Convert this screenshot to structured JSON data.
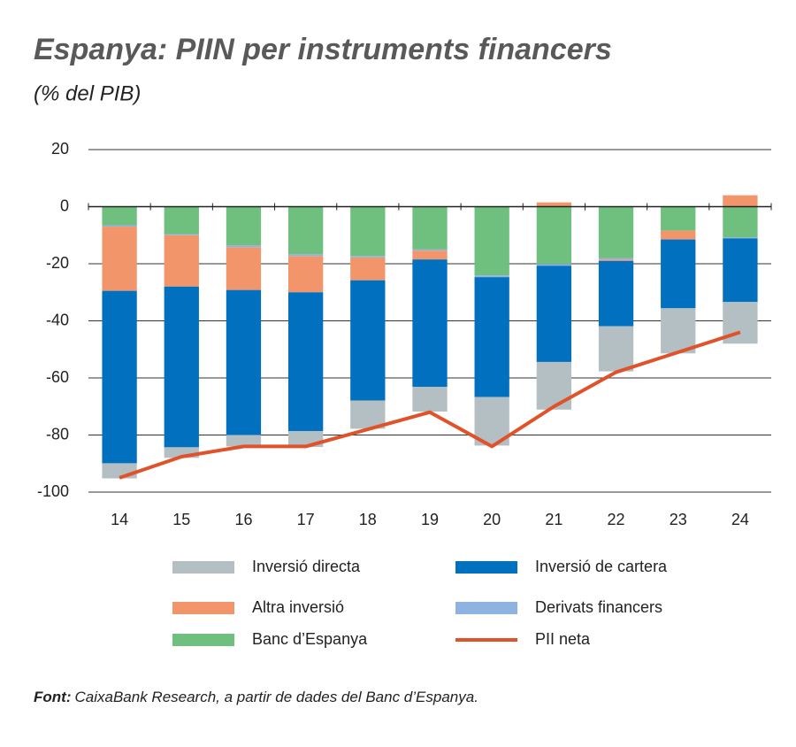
{
  "chart_data": {
    "type": "bar",
    "stacked": true,
    "title": "Espanya: PIIN per instruments financers",
    "subtitle": "(% del PIB)",
    "categories": [
      "14",
      "15",
      "16",
      "17",
      "18",
      "19",
      "20",
      "21",
      "22",
      "23",
      "24"
    ],
    "series": [
      {
        "name": "Inversió directa",
        "color": "#b3bfc2",
        "values": [
          -5.3,
          -3.7,
          -4,
          -5.6,
          -9.9,
          -8.7,
          -17,
          -16.7,
          -15.8,
          -15.8,
          -14.6
        ]
      },
      {
        "name": "Inversió de cartera",
        "color": "#0070bf",
        "values": [
          -60.4,
          -56.3,
          -50.8,
          -48.6,
          -42.1,
          -44.6,
          -42,
          -33.7,
          -22.9,
          -24.1,
          -22.3
        ]
      },
      {
        "name": "Altra inversió",
        "color": "#f2956b",
        "values": [
          -22.5,
          -18,
          -15,
          -12.7,
          -8,
          -3.1,
          0,
          1.5,
          -0.5,
          -3.1,
          4
        ]
      },
      {
        "name": "Derivats financers",
        "color": "#8fb3e0",
        "values": [
          -0.5,
          -0.4,
          -0.6,
          -0.6,
          -0.5,
          -0.5,
          -0.6,
          -0.6,
          -0.5,
          0,
          -0.3
        ]
      },
      {
        "name": "Banc d’Espanya",
        "color": "#6fbf7f",
        "values": [
          -6.5,
          -9.6,
          -13.6,
          -16.7,
          -17.3,
          -14.9,
          -24.1,
          -20.1,
          -18,
          -8.4,
          -10.8
        ]
      },
      {
        "name": "PII neta",
        "type": "line",
        "color": "#e0522a",
        "values": [
          -95,
          -87.6,
          -84,
          -84,
          -78,
          -72,
          -84,
          -70,
          -58,
          -51,
          -44
        ]
      }
    ],
    "ylim": [
      -100,
      20
    ],
    "yticks": [
      -100,
      -80,
      -60,
      -40,
      -20,
      0,
      20
    ],
    "grid": true,
    "source_label": "Font:",
    "source": "CaixaBank Research, a partir de dades del Banc d’Espanya."
  }
}
